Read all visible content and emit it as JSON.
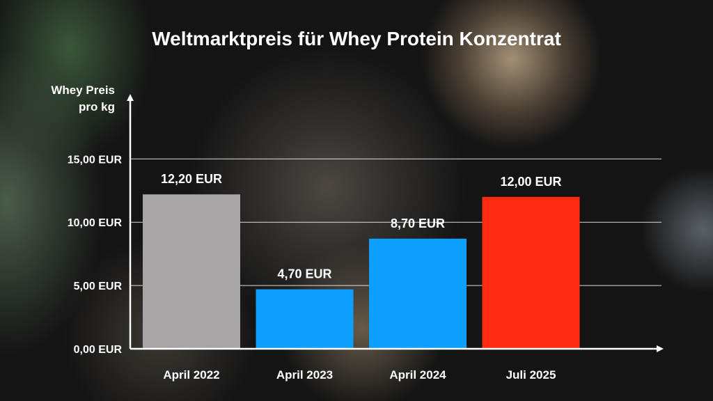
{
  "chart_data": {
    "type": "bar",
    "title": "Weltmarktpreis für Whey Protein Konzentrat",
    "ylabel_line1": "Whey Preis",
    "ylabel_line2": "pro kg",
    "xlabel": "",
    "categories": [
      "April 2022",
      "April 2023",
      "April 2024",
      "Juli 2025"
    ],
    "values": [
      12.2,
      4.7,
      8.7,
      12.0
    ],
    "value_labels": [
      "12,20 EUR",
      "4,70 EUR",
      "8,70 EUR",
      "12,00 EUR"
    ],
    "bar_colors": [
      "#a9a4a5",
      "#0f9fff",
      "#0f9fff",
      "#ff2a12"
    ],
    "ylim": [
      0,
      17
    ],
    "yticks": [
      0,
      5,
      10,
      15
    ],
    "ytick_labels": [
      "0,00 EUR",
      "5,00 EUR",
      "10,00 EUR",
      "15,00 EUR"
    ],
    "grid": true
  }
}
